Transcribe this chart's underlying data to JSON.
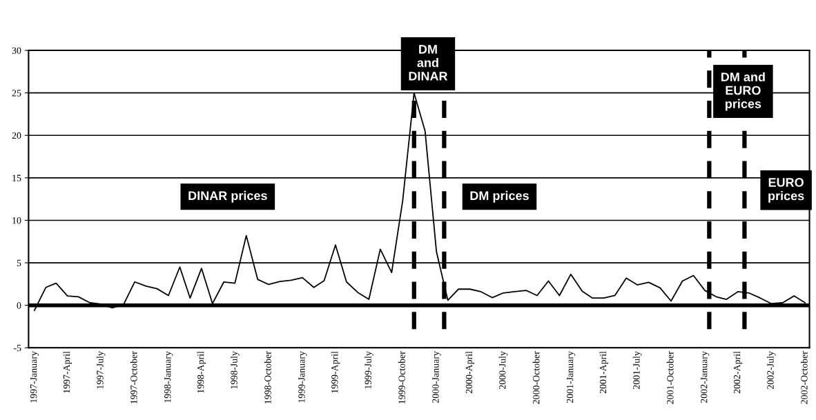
{
  "chart_data": {
    "type": "line",
    "x": [
      "1997-01",
      "1997-02",
      "1997-03",
      "1997-04",
      "1997-05",
      "1997-06",
      "1997-07",
      "1997-08",
      "1997-09",
      "1997-10",
      "1997-11",
      "1997-12",
      "1998-01",
      "1998-02",
      "1998-03",
      "1998-04",
      "1998-05",
      "1998-06",
      "1998-07",
      "1998-08",
      "1998-09",
      "1998-10",
      "1998-11",
      "1998-12",
      "1999-01",
      "1999-02",
      "1999-03",
      "1999-04",
      "1999-05",
      "1999-06",
      "1999-07",
      "1999-08",
      "1999-09",
      "1999-10",
      "1999-11",
      "1999-12",
      "2000-01",
      "2000-02",
      "2000-03",
      "2000-04",
      "2000-05",
      "2000-06",
      "2000-07",
      "2000-08",
      "2000-09",
      "2000-10",
      "2000-11",
      "2000-12",
      "2001-01",
      "2001-02",
      "2001-03",
      "2001-04",
      "2001-05",
      "2001-06",
      "2001-07",
      "2001-08",
      "2001-09",
      "2001-10",
      "2001-11",
      "2001-12",
      "2002-01",
      "2002-02",
      "2002-03",
      "2002-04",
      "2002-05",
      "2002-06",
      "2002-07",
      "2002-08",
      "2002-09",
      "2002-10"
    ],
    "series": [
      {
        "color": "#000000",
        "values": [
          -0.6,
          2.1,
          2.6,
          1.1,
          1.0,
          0.3,
          0.15,
          -0.3,
          0.1,
          2.75,
          2.25,
          1.95,
          1.15,
          4.5,
          0.85,
          4.35,
          0.2,
          2.75,
          2.6,
          8.2,
          3.05,
          2.45,
          2.8,
          2.95,
          3.25,
          2.1,
          2.9,
          7.1,
          2.75,
          1.5,
          0.7,
          6.6,
          3.85,
          12.3,
          25.0,
          20.5,
          6.3,
          0.6,
          1.9,
          1.9,
          1.6,
          0.9,
          1.45,
          1.6,
          1.75,
          1.15,
          2.85,
          1.15,
          3.65,
          1.65,
          0.85,
          0.85,
          1.15,
          3.2,
          2.4,
          2.7,
          2.05,
          0.5,
          2.85,
          3.5,
          1.75,
          1.0,
          0.7,
          1.6,
          1.45,
          0.85,
          0.2,
          0.3,
          1.1,
          0.3
        ]
      }
    ],
    "xlim": [
      "1996-12-16",
      "2002-10-13"
    ],
    "xticks": [
      {
        "value": "1997-01",
        "label": "1997-January"
      },
      {
        "value": "1997-04",
        "label": "1997-April"
      },
      {
        "value": "1997-07",
        "label": "1997-July"
      },
      {
        "value": "1997-10",
        "label": "1997-October"
      },
      {
        "value": "1998-01",
        "label": "1998-January"
      },
      {
        "value": "1998-04",
        "label": "1998-April"
      },
      {
        "value": "1998-07",
        "label": "1998-July"
      },
      {
        "value": "1998-10",
        "label": "1998-October"
      },
      {
        "value": "1999-01",
        "label": "1999-January"
      },
      {
        "value": "1999-04",
        "label": "1999-April"
      },
      {
        "value": "1999-07",
        "label": "1999-July"
      },
      {
        "value": "1999-10",
        "label": "1999-October"
      },
      {
        "value": "2000-01",
        "label": "2000-January"
      },
      {
        "value": "2000-04",
        "label": "2000-April"
      },
      {
        "value": "2000-07",
        "label": "2000-July"
      },
      {
        "value": "2000-10",
        "label": "2000-October"
      },
      {
        "value": "2001-01",
        "label": "2001-January"
      },
      {
        "value": "2001-04",
        "label": "2001-April"
      },
      {
        "value": "2001-07",
        "label": "2001-July"
      },
      {
        "value": "2001-10",
        "label": "2001-October"
      },
      {
        "value": "2002-01",
        "label": "2002-January"
      },
      {
        "value": "2002-04",
        "label": "2002-April"
      },
      {
        "value": "2002-07",
        "label": "2002-July"
      },
      {
        "value": "2002-10",
        "label": "2002-October"
      }
    ],
    "ylim": [
      -5,
      30
    ],
    "yticks": [
      -5,
      0,
      5,
      10,
      15,
      20,
      25,
      30
    ],
    "grid": "y",
    "ref_lines": [
      {
        "axis": "y",
        "value": 0,
        "color": "#000000",
        "line_style": "solid"
      },
      {
        "axis": "x",
        "value": "1999-11-01",
        "color": "#000000",
        "line_style": "dashed"
      },
      {
        "axis": "x",
        "value": "2000-01-22",
        "color": "#000000",
        "line_style": "dashed"
      },
      {
        "axis": "x",
        "value": "2002-01-13",
        "color": "#000000",
        "line_style": "dashed"
      },
      {
        "axis": "x",
        "value": "2002-04-19",
        "color": "#000000",
        "line_style": "dashed"
      }
    ],
    "annotations": [
      "DM\nand\nDINAR",
      "DINAR prices",
      "DM prices",
      "DM and\nEURO\nprices",
      "EURO\nprices"
    ]
  }
}
